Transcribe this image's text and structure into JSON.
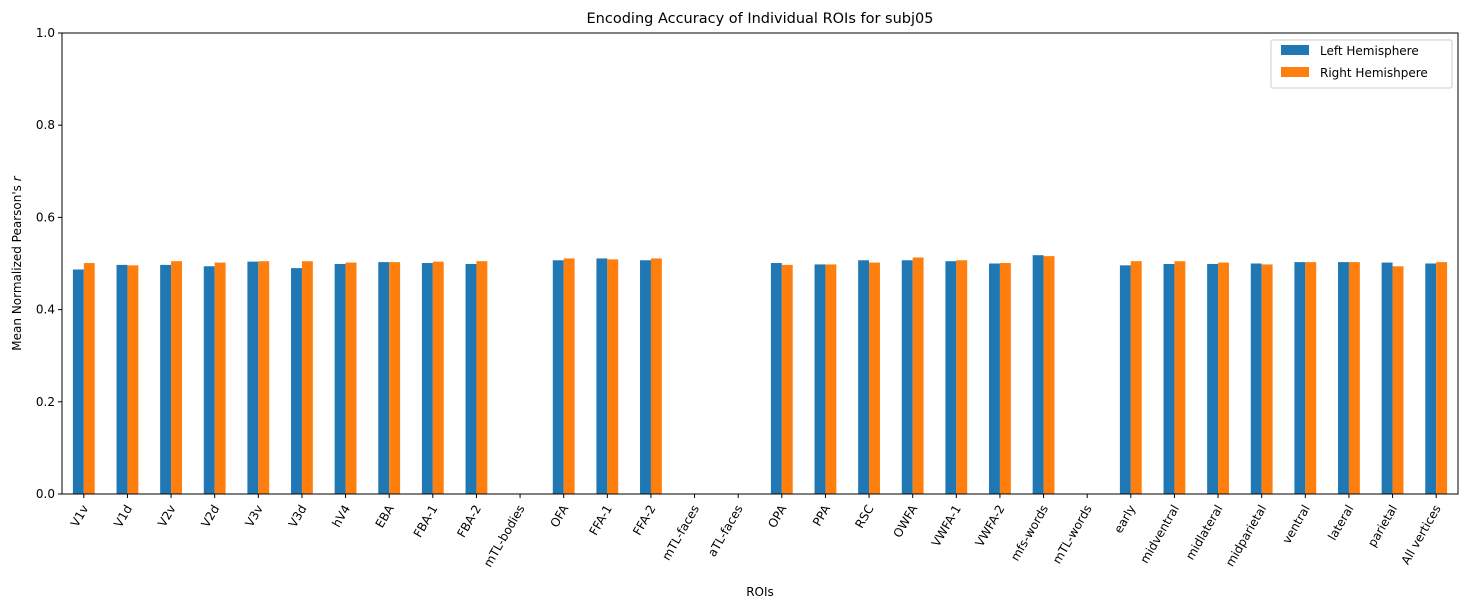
{
  "chart_data": {
    "type": "bar",
    "title": "Encoding Accuracy of Individual ROIs for subj05",
    "xlabel": "ROIs",
    "ylabel": "Mean Normalized Pearson's",
    "ylabel_symbol": "r",
    "ylim": [
      0,
      1.0
    ],
    "yticks": [
      "0.0",
      "0.2",
      "0.4",
      "0.6",
      "0.8",
      "1.0"
    ],
    "ytick_values": [
      0,
      0.2,
      0.4,
      0.6,
      0.8,
      1.0
    ],
    "grid": false,
    "legend_position": "top-right",
    "categories": [
      "V1v",
      "V1d",
      "V2v",
      "V2d",
      "V3v",
      "V3d",
      "hV4",
      "EBA",
      "FBA-1",
      "FBA-2",
      "mTL-bodies",
      "OFA",
      "FFA-1",
      "FFA-2",
      "mTL-faces",
      "aTL-faces",
      "OPA",
      "PPA",
      "RSC",
      "OWFA",
      "VWFA-1",
      "VWFA-2",
      "mfs-words",
      "mTL-words",
      "early",
      "midventral",
      "midlateral",
      "midparietal",
      "ventral",
      "lateral",
      "parietal",
      "All vertices"
    ],
    "series": [
      {
        "name": "Left Hemisphere",
        "color": "#1f77b4",
        "values": [
          0.487,
          0.497,
          0.497,
          0.494,
          0.504,
          0.49,
          0.499,
          0.503,
          0.501,
          0.499,
          0,
          0.507,
          0.511,
          0.507,
          0,
          0,
          0.501,
          0.498,
          0.507,
          0.507,
          0.505,
          0.5,
          0.518,
          0,
          0.496,
          0.499,
          0.499,
          0.5,
          0.503,
          0.503,
          0.502,
          0.5
        ]
      },
      {
        "name": "Right Hemishpere",
        "color": "#ff7f0e",
        "values": [
          0.501,
          0.496,
          0.505,
          0.502,
          0.505,
          0.505,
          0.502,
          0.503,
          0.504,
          0.505,
          0,
          0.511,
          0.509,
          0.511,
          0,
          0,
          0.497,
          0.498,
          0.502,
          0.513,
          0.507,
          0.501,
          0.516,
          0,
          0.505,
          0.505,
          0.502,
          0.498,
          0.503,
          0.503,
          0.494,
          0.503
        ]
      }
    ]
  }
}
